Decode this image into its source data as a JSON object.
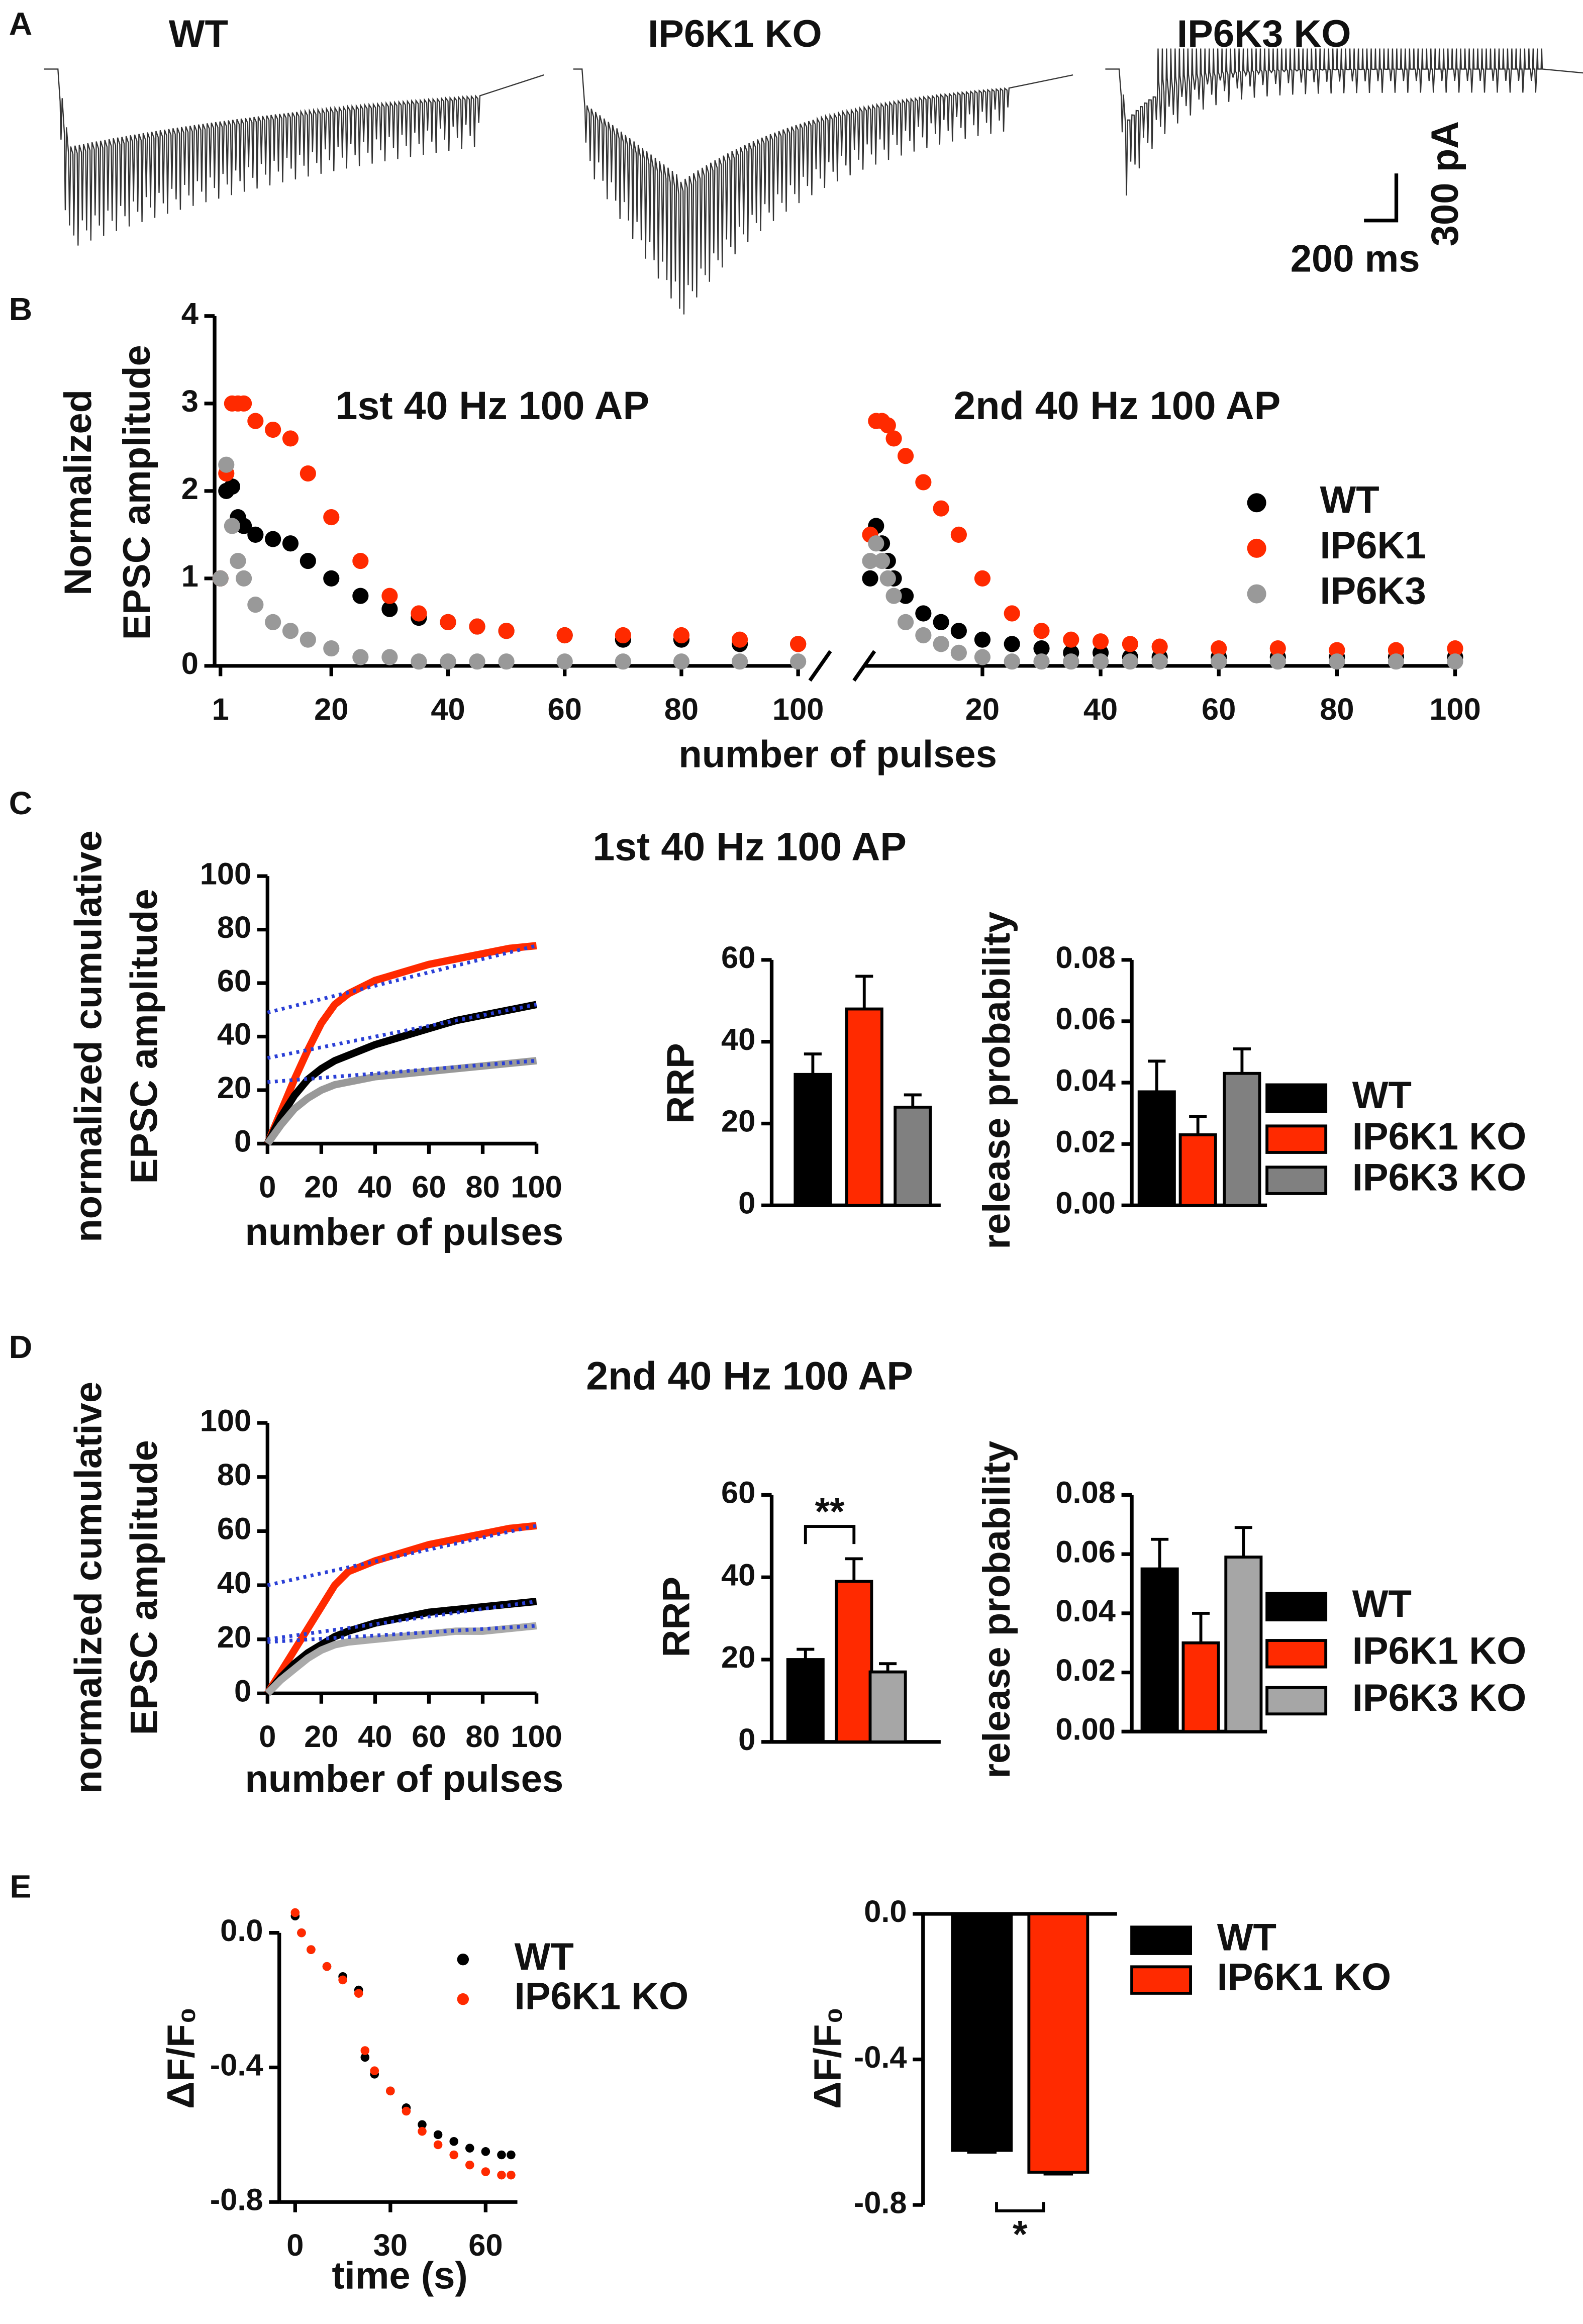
{
  "panels": [
    "A",
    "B",
    "C",
    "D",
    "E"
  ],
  "chart_data": [
    {
      "type": "trace",
      "labels": [
        "WT",
        "IP6K1 KO",
        "IP6K3 KO"
      ],
      "scale_y": "300 pA",
      "scale_x": "200 ms"
    },
    {
      "type": "scatter",
      "annotation": "1st 40 Hz 100 AP",
      "y_label": [
        "Normalized",
        "EPSC amplitude"
      ],
      "x_label": "number of pulses",
      "xlim": [
        0,
        100
      ],
      "xticks": [
        1,
        20,
        40,
        60,
        80,
        100
      ],
      "ylim": [
        0,
        4
      ],
      "yticks": [
        0,
        1,
        2,
        3,
        4
      ],
      "x": [
        1,
        2,
        3,
        4,
        5,
        7,
        10,
        13,
        16,
        20,
        25,
        30,
        35,
        40,
        45,
        50,
        60,
        70,
        80,
        90,
        100
      ],
      "series": [
        {
          "name": "WT",
          "color": "#000000",
          "values": [
            1,
            2,
            2.05,
            1.7,
            1.6,
            1.5,
            1.45,
            1.4,
            1.2,
            1.0,
            0.8,
            0.65,
            0.55,
            0.5,
            0.45,
            0.4,
            0.35,
            0.3,
            0.3,
            0.25,
            0.25
          ]
        },
        {
          "name": "IP6K1",
          "color": "#ff2a00",
          "values": [
            1,
            2.2,
            3.0,
            3.0,
            3.0,
            2.8,
            2.7,
            2.6,
            2.2,
            1.7,
            1.2,
            0.8,
            0.6,
            0.5,
            0.45,
            0.4,
            0.35,
            0.35,
            0.35,
            0.3,
            0.25
          ]
        },
        {
          "name": "IP6K3",
          "color": "#999999",
          "values": [
            1,
            2.3,
            1.6,
            1.2,
            1.0,
            0.7,
            0.5,
            0.4,
            0.3,
            0.2,
            0.1,
            0.1,
            0.05,
            0.05,
            0.05,
            0.05,
            0.05,
            0.05,
            0.05,
            0.05,
            0.05
          ]
        }
      ]
    },
    {
      "type": "scatter",
      "annotation": "2nd 40 Hz 100 AP",
      "xlim": [
        0,
        100
      ],
      "xticks": [
        20,
        40,
        60,
        80,
        100
      ],
      "ylim": [
        0,
        4
      ],
      "x": [
        1,
        2,
        3,
        4,
        5,
        7,
        10,
        13,
        16,
        20,
        25,
        30,
        35,
        40,
        45,
        50,
        60,
        70,
        80,
        90,
        100
      ],
      "series": [
        {
          "name": "WT",
          "color": "#000000",
          "values": [
            1,
            1.6,
            1.4,
            1.2,
            1.0,
            0.8,
            0.6,
            0.5,
            0.4,
            0.3,
            0.25,
            0.2,
            0.15,
            0.15,
            0.1,
            0.1,
            0.1,
            0.1,
            0.1,
            0.1,
            0.1
          ]
        },
        {
          "name": "IP6K1",
          "color": "#ff2a00",
          "values": [
            1.5,
            2.8,
            2.8,
            2.75,
            2.6,
            2.4,
            2.1,
            1.8,
            1.5,
            1.0,
            0.6,
            0.4,
            0.3,
            0.28,
            0.25,
            0.22,
            0.2,
            0.2,
            0.18,
            0.18,
            0.2
          ]
        },
        {
          "name": "IP6K3",
          "color": "#999999",
          "values": [
            1.2,
            1.4,
            1.2,
            1.0,
            0.8,
            0.5,
            0.35,
            0.25,
            0.15,
            0.1,
            0.05,
            0.05,
            0.05,
            0.05,
            0.05,
            0.05,
            0.05,
            0.05,
            0.05,
            0.05,
            0.05
          ]
        }
      ]
    },
    {
      "type": "line",
      "title": "1st 40 Hz 100 AP",
      "y_label": [
        "normalized cumulative",
        "EPSC amplitude"
      ],
      "x_label": "number of pulses",
      "xlim": [
        0,
        100
      ],
      "xticks": [
        0,
        20,
        40,
        60,
        80,
        100
      ],
      "ylim": [
        0,
        100
      ],
      "yticks": [
        0,
        20,
        40,
        60,
        80,
        100
      ],
      "x": [
        0,
        5,
        10,
        15,
        20,
        25,
        30,
        40,
        50,
        60,
        70,
        80,
        90,
        100
      ],
      "series": [
        {
          "color": "#ff2a00",
          "values": [
            0,
            12,
            24,
            35,
            45,
            52,
            56,
            61,
            64,
            67,
            69,
            71,
            73,
            74
          ]
        },
        {
          "color": "#000000",
          "values": [
            0,
            10,
            18,
            24,
            28,
            31,
            33,
            37,
            40,
            43,
            46,
            48,
            50,
            52
          ]
        },
        {
          "color": "#999999",
          "values": [
            0,
            7,
            13,
            17,
            20,
            22,
            23,
            25,
            26,
            27,
            28,
            29,
            30,
            31
          ]
        }
      ],
      "fit_color": "#2a3fd6",
      "fit_x": [
        0,
        100
      ],
      "fits": [
        [
          32,
          52
        ],
        [
          49,
          74
        ],
        [
          23,
          31
        ]
      ]
    },
    {
      "type": "bar",
      "y_label": "RRP",
      "ylim": [
        0,
        60
      ],
      "yticks": [
        0,
        20,
        40,
        60
      ],
      "values": [
        32,
        48,
        24
      ],
      "errors": [
        5,
        8,
        3
      ],
      "colors": [
        "#000000",
        "#ff2a00",
        "#808080"
      ]
    },
    {
      "type": "bar",
      "y_label": "release probability",
      "ylim": [
        0,
        0.08
      ],
      "yticks": [
        {
          "value": 0,
          "label": "0.00"
        },
        0.02,
        0.04,
        0.06,
        0.08
      ],
      "values": [
        0.037,
        0.023,
        0.043
      ],
      "errors": [
        0.01,
        0.006,
        0.008
      ],
      "colors": [
        "#000000",
        "#ff2a00",
        "#808080"
      ],
      "legend": [
        "WT",
        "IP6K1 KO",
        "IP6K3 KO"
      ]
    },
    {
      "type": "line",
      "title": "2nd 40 Hz 100 AP",
      "y_label": [
        "normalized cumulative",
        "EPSC amplitude"
      ],
      "x_label": "number of pulses",
      "xlim": [
        0,
        100
      ],
      "xticks": [
        0,
        20,
        40,
        60,
        80,
        100
      ],
      "ylim": [
        0,
        100
      ],
      "yticks": [
        0,
        20,
        40,
        60,
        80,
        100
      ],
      "x": [
        0,
        5,
        10,
        15,
        20,
        25,
        30,
        40,
        50,
        60,
        70,
        80,
        90,
        100
      ],
      "series": [
        {
          "color": "#ff2a00",
          "values": [
            0,
            8,
            16,
            24,
            32,
            40,
            45,
            49,
            52,
            55,
            57,
            59,
            61,
            62
          ]
        },
        {
          "color": "#000000",
          "values": [
            0,
            6,
            11,
            15,
            18,
            21,
            23,
            26,
            28,
            30,
            31,
            32,
            33,
            34
          ]
        },
        {
          "color": "#aaaaaa",
          "values": [
            0,
            5,
            9,
            13,
            16,
            18,
            19,
            20,
            21,
            22,
            23,
            23,
            24,
            25
          ]
        }
      ],
      "fit_color": "#2a3fd6",
      "fit_x": [
        0,
        100
      ],
      "fits": [
        [
          40,
          62
        ],
        [
          20,
          34
        ],
        [
          19,
          25
        ]
      ]
    },
    {
      "type": "bar",
      "y_label": "RRP",
      "ylim": [
        0,
        60
      ],
      "yticks": [
        0,
        20,
        40,
        60
      ],
      "significance": "**",
      "values": [
        20,
        39,
        17
      ],
      "errors": [
        2.5,
        5.5,
        2
      ],
      "colors": [
        "#000000",
        "#ff2a00",
        "#a6a6a6"
      ]
    },
    {
      "type": "bar",
      "y_label": "release probability",
      "ylim": [
        0,
        0.08
      ],
      "yticks": [
        {
          "value": 0,
          "label": "0.00"
        },
        0.02,
        0.04,
        0.06,
        0.08
      ],
      "values": [
        0.055,
        0.03,
        0.059
      ],
      "errors": [
        0.01,
        0.01,
        0.01
      ],
      "colors": [
        "#000000",
        "#ff2a00",
        "#a6a6a6"
      ],
      "legend": [
        "WT",
        "IP6K1 KO",
        "IP6K3 KO"
      ]
    },
    {
      "type": "scatter",
      "y_label": "ΔF/F₀",
      "x_label": "time (s)",
      "xlim": [
        -5,
        70
      ],
      "xticks": [
        0,
        30,
        60
      ],
      "ylim": [
        -0.8,
        0.1
      ],
      "yticks": [
        {
          "value": 0,
          "label": "0.0"
        },
        -0.4,
        -0.8
      ],
      "x": [
        0,
        2,
        5,
        10,
        15,
        20,
        22,
        25,
        30,
        35,
        40,
        45,
        50,
        55,
        60,
        65,
        68
      ],
      "series": [
        {
          "name": "WT",
          "color": "#000000",
          "values": [
            0.05,
            0,
            -0.05,
            -0.1,
            -0.13,
            -0.17,
            -0.37,
            -0.42,
            -0.47,
            -0.52,
            -0.57,
            -0.6,
            -0.62,
            -0.64,
            -0.65,
            -0.66,
            -0.66
          ]
        },
        {
          "name": "IP6K1 KO",
          "color": "#ff2a00",
          "values": [
            0.06,
            0,
            -0.05,
            -0.1,
            -0.14,
            -0.18,
            -0.35,
            -0.41,
            -0.47,
            -0.53,
            -0.59,
            -0.63,
            -0.66,
            -0.69,
            -0.71,
            -0.72,
            -0.72
          ]
        }
      ]
    },
    {
      "type": "bar",
      "y_label": "ΔF/F₀",
      "ylim": [
        -0.8,
        0
      ],
      "yticks": [
        {
          "value": 0,
          "label": "0.0"
        },
        -0.4,
        -0.8
      ],
      "significance": "*",
      "values": [
        -0.65,
        -0.71
      ],
      "errors": [
        0.005,
        0.005
      ],
      "colors": [
        "#000000",
        "#ff2a00"
      ],
      "legend": [
        "WT",
        "IP6K1 KO"
      ]
    }
  ]
}
